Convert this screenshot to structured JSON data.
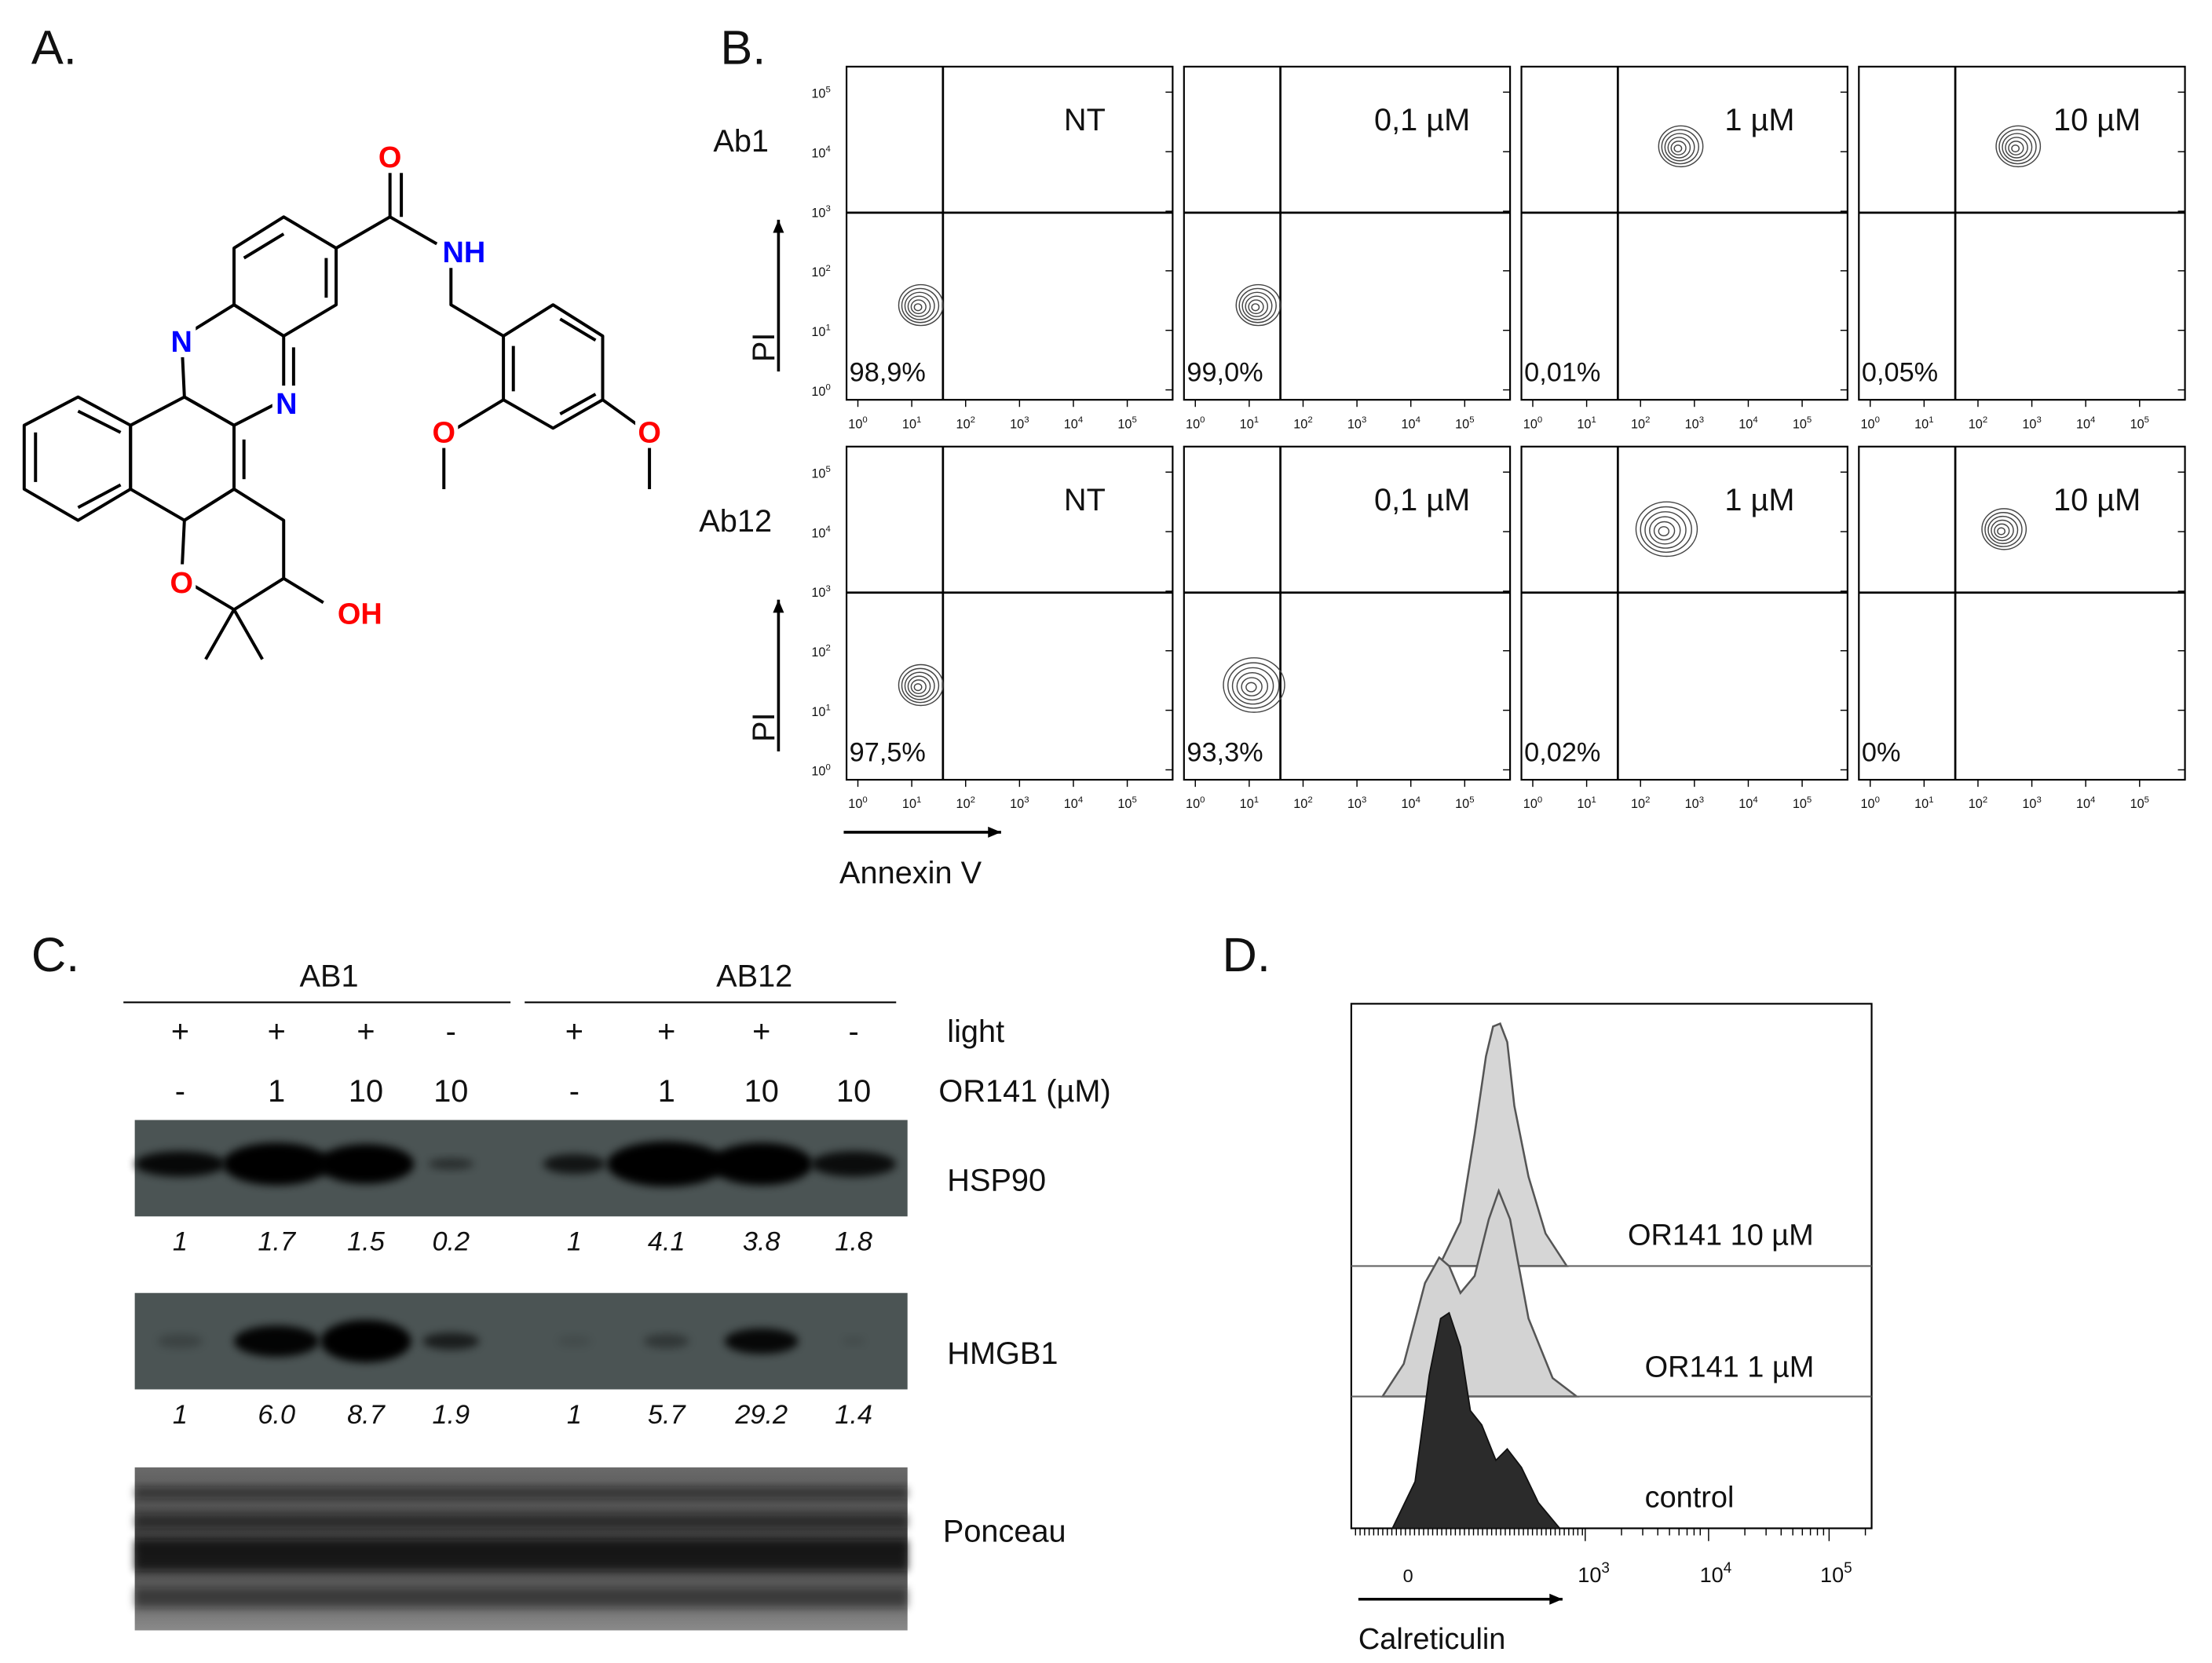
{
  "panel_a": {
    "label": "A.",
    "atoms": [
      "O",
      "NH",
      "N",
      "N",
      "O",
      "OH",
      "O",
      "O"
    ]
  },
  "panel_b": {
    "label": "B.",
    "y_axis_label": "PI",
    "x_axis_label": "Annexin V",
    "tick_base": "10",
    "tick_exponents": [
      "0",
      "1",
      "2",
      "3",
      "4",
      "5"
    ],
    "rows": [
      {
        "name": "Ab1",
        "plots": [
          {
            "condition": "NT",
            "percent": "98,9%"
          },
          {
            "condition": "0,1 µM",
            "percent": "99,0%"
          },
          {
            "condition": "1 µM",
            "percent": "0,01%"
          },
          {
            "condition": "10 µM",
            "percent": "0,05%"
          }
        ]
      },
      {
        "name": "Ab12",
        "plots": [
          {
            "condition": "NT",
            "percent": "97,5%"
          },
          {
            "condition": "0,1 µM",
            "percent": "93,3%"
          },
          {
            "condition": "1 µM",
            "percent": "0,02%"
          },
          {
            "condition": "10 µM",
            "percent": "0%"
          }
        ]
      }
    ]
  },
  "panel_c": {
    "label": "C.",
    "groups": [
      "AB1",
      "AB12"
    ],
    "row_labels": [
      "light",
      "OR141 (µM)"
    ],
    "light": [
      "+",
      "+",
      "+",
      "-",
      "+",
      "+",
      "+",
      "-"
    ],
    "dose": [
      "-",
      "1",
      "10",
      "10",
      "-",
      "1",
      "10",
      "10"
    ],
    "blots": [
      {
        "name": "HSP90",
        "quant": [
          "1",
          "1.7",
          "1.5",
          "0.2",
          "1",
          "4.1",
          "3.8",
          "1.8"
        ]
      },
      {
        "name": "HMGB1",
        "quant": [
          "1",
          "6.0",
          "8.7",
          "1.9",
          "1",
          "5.7",
          "29.2",
          "1.4"
        ]
      },
      {
        "name": "Ponceau"
      }
    ]
  },
  "panel_d": {
    "label": "D.",
    "x_axis_label": "Calreticulin",
    "tick_zero": "0",
    "tick_base": "10",
    "tick_exponents": [
      "3",
      "4",
      "5"
    ],
    "traces": [
      "OR141 10 µM",
      "OR141 1 µM",
      "control"
    ]
  }
}
